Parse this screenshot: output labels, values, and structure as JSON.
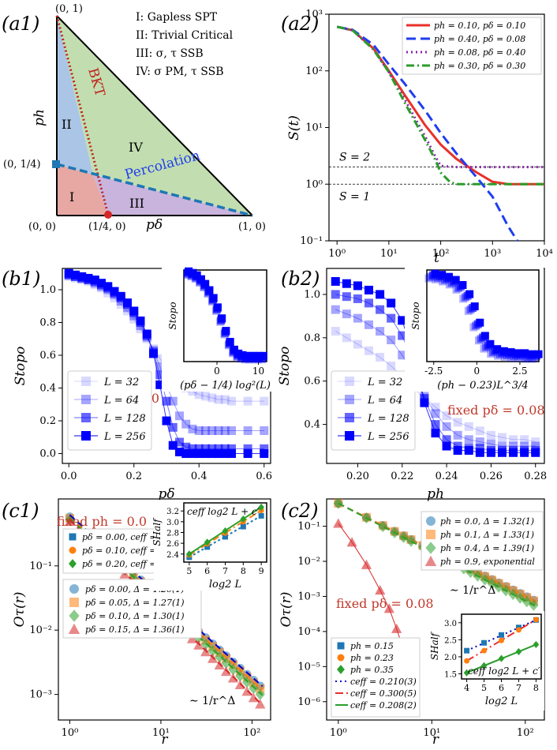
{
  "panels": {
    "a1": {
      "label": "(a1)"
    },
    "a2": {
      "label": "(a2)"
    },
    "b1": {
      "label": "(b1)"
    },
    "b2": {
      "label": "(b2)"
    },
    "c1": {
      "label": "(c1)"
    },
    "c2": {
      "label": "(c2)"
    }
  },
  "colors": {
    "red": "#e8302a",
    "blue": "#1f3ef0",
    "purple": "#8a2aa8",
    "green": "#2a9d2a",
    "c_blue": "#1f77b4",
    "c_orange": "#ff7f0e",
    "c_green": "#2ca02c",
    "c_red": "#d62728",
    "dark_blue": "#0000ff",
    "region_I": "#e7a8a3",
    "region_II": "#aac5e6",
    "region_III": "#c9b4dd",
    "region_IV": "#c2deb0",
    "annot_red": "#c0392b"
  },
  "a1": {
    "phase_labels": [
      "I: Gapless SPT",
      "II: Trivial Critical",
      "III: σ, τ SSB",
      "IV: σ PM, τ SSB"
    ],
    "region_marks": [
      "I",
      "II",
      "III",
      "IV"
    ],
    "corner_labels": [
      "(0, 1)",
      "(0, 1/4)",
      "(0, 0)",
      "(1/4, 0)",
      "(1, 0)"
    ],
    "xlabel": "pδ",
    "ylabel": "ph",
    "line_labels": [
      "BKT",
      "Percolation"
    ]
  },
  "chart_data": [
    {
      "id": "a2",
      "type": "line",
      "xlabel": "t",
      "ylabel": "S(t)",
      "xscale": "log",
      "yscale": "log",
      "xlim": [
        0.7,
        10000
      ],
      "ylim": [
        0.1,
        1000
      ],
      "xticks": [
        "10⁰",
        "10¹",
        "10²",
        "10³",
        "10⁴"
      ],
      "yticks": [
        "10⁻¹",
        "10⁰",
        "10¹",
        "10²",
        "10³"
      ],
      "reference_lines": [
        {
          "y": 2,
          "label": "S = 2"
        },
        {
          "y": 1,
          "label": "S = 1"
        }
      ],
      "legend": "top-right",
      "series": [
        {
          "name": "ph = 0.10, pδ = 0.10",
          "style": "solid",
          "x": [
            1,
            2,
            5,
            10,
            20,
            50,
            100,
            200,
            500,
            1000,
            2000,
            10000
          ],
          "y": [
            600,
            520,
            250,
            100,
            38,
            11,
            5,
            2.8,
            1.6,
            1.1,
            1.0,
            1.0
          ]
        },
        {
          "name": "ph = 0.40, pδ = 0.08",
          "style": "dashed",
          "x": [
            1,
            2,
            5,
            10,
            20,
            50,
            100,
            200,
            500,
            1000,
            2000,
            3000
          ],
          "y": [
            600,
            530,
            290,
            130,
            60,
            20,
            8,
            3.5,
            1.3,
            0.6,
            0.18,
            0.1
          ]
        },
        {
          "name": "ph = 0.08, pδ = 0.40",
          "style": "dotted",
          "x": [
            1,
            2,
            5,
            10,
            20,
            50,
            80,
            100,
            200,
            1000,
            10000
          ],
          "y": [
            600,
            520,
            240,
            95,
            32,
            7,
            3,
            2.1,
            2.0,
            2.0,
            2.0
          ]
        },
        {
          "name": "ph = 0.30, pδ = 0.30",
          "style": "dashdot",
          "x": [
            1,
            2,
            5,
            10,
            20,
            50,
            80,
            100,
            150,
            200,
            1000,
            10000
          ],
          "y": [
            600,
            520,
            240,
            95,
            28,
            6,
            2.6,
            1.6,
            1.1,
            1.0,
            1.0,
            1.0
          ]
        }
      ]
    },
    {
      "id": "b1",
      "type": "scatter",
      "xlabel": "pδ",
      "ylabel": "Stopo",
      "xlim": [
        -0.02,
        0.62
      ],
      "ylim": [
        -0.06,
        1.13
      ],
      "xticks": [
        0.0,
        0.2,
        0.4,
        0.6
      ],
      "yticks": [
        0.0,
        0.2,
        0.4,
        0.6,
        0.8,
        1.0
      ],
      "annotation": "fixed ph = 0.0",
      "legend": "bottom-left",
      "x": [
        0.0,
        0.02,
        0.04,
        0.06,
        0.08,
        0.1,
        0.12,
        0.14,
        0.16,
        0.18,
        0.2,
        0.22,
        0.24,
        0.26,
        0.28,
        0.3,
        0.32,
        0.34,
        0.36,
        0.38,
        0.4,
        0.42,
        0.44,
        0.46,
        0.48,
        0.5,
        0.55,
        0.6
      ],
      "series": [
        {
          "name": "L = 32",
          "values": [
            1.08,
            1.07,
            1.06,
            1.05,
            1.03,
            1.01,
            0.98,
            0.95,
            0.91,
            0.87,
            0.82,
            0.76,
            0.7,
            0.64,
            0.58,
            0.52,
            0.47,
            0.43,
            0.4,
            0.38,
            0.36,
            0.35,
            0.34,
            0.33,
            0.33,
            0.32,
            0.32,
            0.32
          ]
        },
        {
          "name": "L = 64",
          "values": [
            1.09,
            1.08,
            1.07,
            1.06,
            1.04,
            1.02,
            1.0,
            0.97,
            0.93,
            0.89,
            0.84,
            0.78,
            0.71,
            0.63,
            0.53,
            0.42,
            0.32,
            0.23,
            0.18,
            0.15,
            0.14,
            0.14,
            0.14,
            0.14,
            0.14,
            0.14,
            0.14,
            0.14
          ]
        },
        {
          "name": "L = 128",
          "values": [
            1.09,
            1.08,
            1.07,
            1.06,
            1.05,
            1.03,
            1.01,
            0.98,
            0.95,
            0.91,
            0.86,
            0.8,
            0.72,
            0.62,
            0.48,
            0.32,
            0.16,
            0.07,
            0.04,
            0.03,
            0.03,
            0.03,
            0.03,
            0.03,
            0.03,
            0.03,
            0.03,
            0.03
          ]
        },
        {
          "name": "L = 256",
          "values": [
            1.1,
            1.09,
            1.08,
            1.07,
            1.06,
            1.04,
            1.02,
            0.99,
            0.96,
            0.92,
            0.87,
            0.81,
            0.73,
            0.61,
            0.42,
            0.2,
            0.05,
            0.01,
            0.0,
            0.0,
            0.0,
            0.0,
            0.0,
            0.0,
            0.0,
            0.0,
            0.0,
            0.0
          ]
        }
      ],
      "inset": {
        "xlabel": "(pδ − 1/4) log²(L)",
        "ylabel": "Stopo",
        "xlim": [
          -8,
          12
        ],
        "ylim": [
          -0.05,
          1.12
        ],
        "xticks": [
          0,
          10
        ],
        "x": [
          -7,
          -6,
          -5,
          -4,
          -3,
          -2,
          -1,
          0,
          1,
          2,
          3,
          4,
          5,
          6,
          7,
          8,
          9,
          10,
          11
        ],
        "values": [
          1.08,
          1.06,
          1.03,
          0.98,
          0.92,
          0.84,
          0.74,
          0.62,
          0.48,
          0.32,
          0.18,
          0.08,
          0.03,
          0.01,
          0.0,
          0.0,
          0.0,
          0.0,
          0.0
        ]
      }
    },
    {
      "id": "b2",
      "type": "scatter",
      "xlabel": "ph",
      "ylabel": "Stopo",
      "xlim": [
        0.186,
        0.284
      ],
      "ylim": [
        0.22,
        1.12
      ],
      "xticks": [
        0.2,
        0.22,
        0.24,
        0.26,
        0.28
      ],
      "yticks": [
        0.4,
        0.6,
        0.8,
        1.0
      ],
      "annotation": "fixed pδ = 0.08",
      "legend": "bottom-left",
      "x": [
        0.19,
        0.195,
        0.2,
        0.205,
        0.21,
        0.215,
        0.22,
        0.225,
        0.23,
        0.235,
        0.24,
        0.245,
        0.25,
        0.255,
        0.26,
        0.265,
        0.27,
        0.275,
        0.28
      ],
      "series": [
        {
          "name": "L = 32",
          "values": [
            0.83,
            0.8,
            0.77,
            0.74,
            0.71,
            0.67,
            0.62,
            0.57,
            0.52,
            0.48,
            0.44,
            0.41,
            0.39,
            0.37,
            0.35,
            0.34,
            0.33,
            0.33,
            0.32
          ]
        },
        {
          "name": "L = 64",
          "values": [
            0.93,
            0.91,
            0.89,
            0.86,
            0.83,
            0.79,
            0.72,
            0.63,
            0.53,
            0.45,
            0.39,
            0.35,
            0.33,
            0.32,
            0.31,
            0.3,
            0.3,
            0.3,
            0.3
          ]
        },
        {
          "name": "L = 128",
          "values": [
            1.0,
            0.99,
            0.98,
            0.96,
            0.93,
            0.89,
            0.81,
            0.68,
            0.52,
            0.4,
            0.33,
            0.3,
            0.29,
            0.29,
            0.28,
            0.28,
            0.28,
            0.28,
            0.28
          ]
        },
        {
          "name": "L = 256",
          "values": [
            1.06,
            1.05,
            1.04,
            1.02,
            1.0,
            0.96,
            0.88,
            0.72,
            0.5,
            0.36,
            0.3,
            0.28,
            0.28,
            0.27,
            0.27,
            0.27,
            0.27,
            0.27,
            0.27
          ]
        }
      ],
      "inset": {
        "xlabel": "(ph − 0.23)L^3/4",
        "ylabel": "Stopo",
        "xlim": [
          -2.9,
          3.6
        ],
        "ylim": [
          0.22,
          1.12
        ],
        "xticks": [
          -2.5,
          0.0,
          2.5
        ],
        "x": [
          -2.6,
          -2.2,
          -1.8,
          -1.4,
          -1.0,
          -0.6,
          -0.3,
          0.0,
          0.3,
          0.6,
          1.0,
          1.4,
          1.8,
          2.2,
          2.6,
          3.0,
          3.4
        ],
        "values": [
          1.06,
          1.05,
          1.03,
          1.0,
          0.95,
          0.86,
          0.74,
          0.58,
          0.45,
          0.37,
          0.32,
          0.3,
          0.29,
          0.28,
          0.28,
          0.27,
          0.27
        ]
      }
    },
    {
      "id": "c1",
      "type": "scatter",
      "xlabel": "r",
      "ylabel": "Oτ(r)",
      "xscale": "log",
      "yscale": "log",
      "xlim": [
        0.75,
        160
      ],
      "ylim": [
        0.0004,
        1.1
      ],
      "xticks": [
        "10⁰",
        "10¹",
        "10²"
      ],
      "yticks": [
        "10⁻³",
        "10⁻²",
        "10⁻¹"
      ],
      "annotation": "fixed ph = 0.0",
      "scaling_label": "∼ 1/r^Δ",
      "legend": "bottom-left",
      "series": [
        {
          "name": "pδ = 0.00, Δ = 1.26(1)",
          "marker": "circle",
          "amp": 0.58,
          "exp": 1.26
        },
        {
          "name": "pδ = 0.05, Δ = 1.27(1)",
          "marker": "square",
          "amp": 0.55,
          "exp": 1.27
        },
        {
          "name": "pδ = 0.10, Δ = 1.30(1)",
          "marker": "diamond",
          "amp": 0.52,
          "exp": 1.3
        },
        {
          "name": "pδ = 0.15, Δ = 1.36(1)",
          "marker": "triangle",
          "amp": 0.49,
          "exp": 1.36
        }
      ],
      "fits": [
        {
          "name": "pδ = 0.00, ceff = 0.192(1)"
        },
        {
          "name": "pδ = 0.10, ceff = 0.206(1)"
        },
        {
          "name": "pδ = 0.20, ceff = 0.216(1)"
        }
      ],
      "inset": {
        "xlabel": "log2 L",
        "ylabel": "SHalf",
        "label": "ceff log2 L + c′",
        "xlim": [
          4.7,
          9.3
        ],
        "ylim": [
          2.25,
          3.35
        ],
        "xticks": [
          5,
          6,
          7,
          8,
          9
        ],
        "yticks": [
          2.4,
          2.6,
          2.8,
          3.0,
          3.2
        ],
        "x": [
          5,
          6,
          7,
          8,
          9
        ],
        "series": [
          {
            "values": [
              2.34,
              2.53,
              2.72,
              2.91,
              3.11
            ]
          },
          {
            "values": [
              2.38,
              2.59,
              2.79,
              3.0,
              3.21
            ]
          },
          {
            "values": [
              2.4,
              2.62,
              2.83,
              3.05,
              3.27
            ]
          }
        ]
      }
    },
    {
      "id": "c2",
      "type": "scatter",
      "xlabel": "r",
      "ylabel": "Oτ(r)",
      "xscale": "log",
      "yscale": "log",
      "xlim": [
        0.75,
        160
      ],
      "ylim": [
        3e-07,
        0.6
      ],
      "xticks": [
        "10⁰",
        "10¹",
        "10²"
      ],
      "yticks": [
        "10⁻⁶",
        "10⁻⁵",
        "10⁻⁴",
        "10⁻³",
        "10⁻²",
        "10⁻¹"
      ],
      "annotation": "fixed pδ = 0.08",
      "scaling_label": "∼ 1/r^Δ",
      "legend": "top-right",
      "series": [
        {
          "name": "ph = 0.0, Δ = 1.32(1)",
          "marker": "circle",
          "amp": 0.45,
          "exp": 1.32
        },
        {
          "name": "ph = 0.1, Δ = 1.33(1)",
          "marker": "square",
          "amp": 0.45,
          "exp": 1.33
        },
        {
          "name": "ph = 0.4, Δ = 1.39(1)",
          "marker": "diamond",
          "amp": 0.45,
          "exp": 1.39
        },
        {
          "name": "ph = 0.9, exponential",
          "marker": "triangle",
          "x": [
            1,
            1.4,
            2,
            2.8,
            3.5,
            4.2,
            5,
            6
          ],
          "values": [
            0.12,
            0.035,
            0.008,
            0.0015,
            0.00045,
            0.00012,
            3e-05,
            4.5e-06
          ]
        }
      ],
      "inset": {
        "xlabel": "log2 L",
        "ylabel": "SHalf",
        "label": "ceff log2 L + c′",
        "xlim": [
          3.7,
          8.3
        ],
        "ylim": [
          1.35,
          3.25
        ],
        "xticks": [
          4,
          5,
          6,
          7,
          8
        ],
        "yticks": [
          1.5,
          2.0,
          2.5,
          3.0
        ],
        "x": [
          4,
          5,
          6,
          7,
          8
        ],
        "series": [
          {
            "name": "ph = 0.15",
            "marker": "square",
            "values": [
              2.18,
              2.41,
              2.64,
              2.86,
              3.08
            ]
          },
          {
            "name": "ph = 0.23",
            "marker": "circle",
            "values": [
              1.88,
              2.18,
              2.48,
              2.79,
              3.09
            ]
          },
          {
            "name": "ph = 0.35",
            "marker": "diamond",
            "values": [
              1.53,
              1.74,
              1.95,
              2.15,
              2.36
            ]
          }
        ],
        "fits": [
          {
            "name": "ceff = 0.210(3)",
            "style": "dotted"
          },
          {
            "name": "ceff = 0.300(5)",
            "style": "dashdot"
          },
          {
            "name": "ceff = 0.208(2)",
            "style": "solid"
          }
        ]
      }
    }
  ]
}
